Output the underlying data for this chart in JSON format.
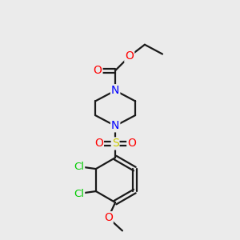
{
  "bg_color": "#ebebeb",
  "atom_colors": {
    "C": "#000000",
    "N": "#0000ff",
    "O": "#ff0000",
    "S": "#cccc00",
    "Cl": "#00cc00"
  },
  "bond_color": "#1a1a1a",
  "line_width": 1.6,
  "figsize": [
    3.0,
    3.0
  ],
  "dpi": 100
}
